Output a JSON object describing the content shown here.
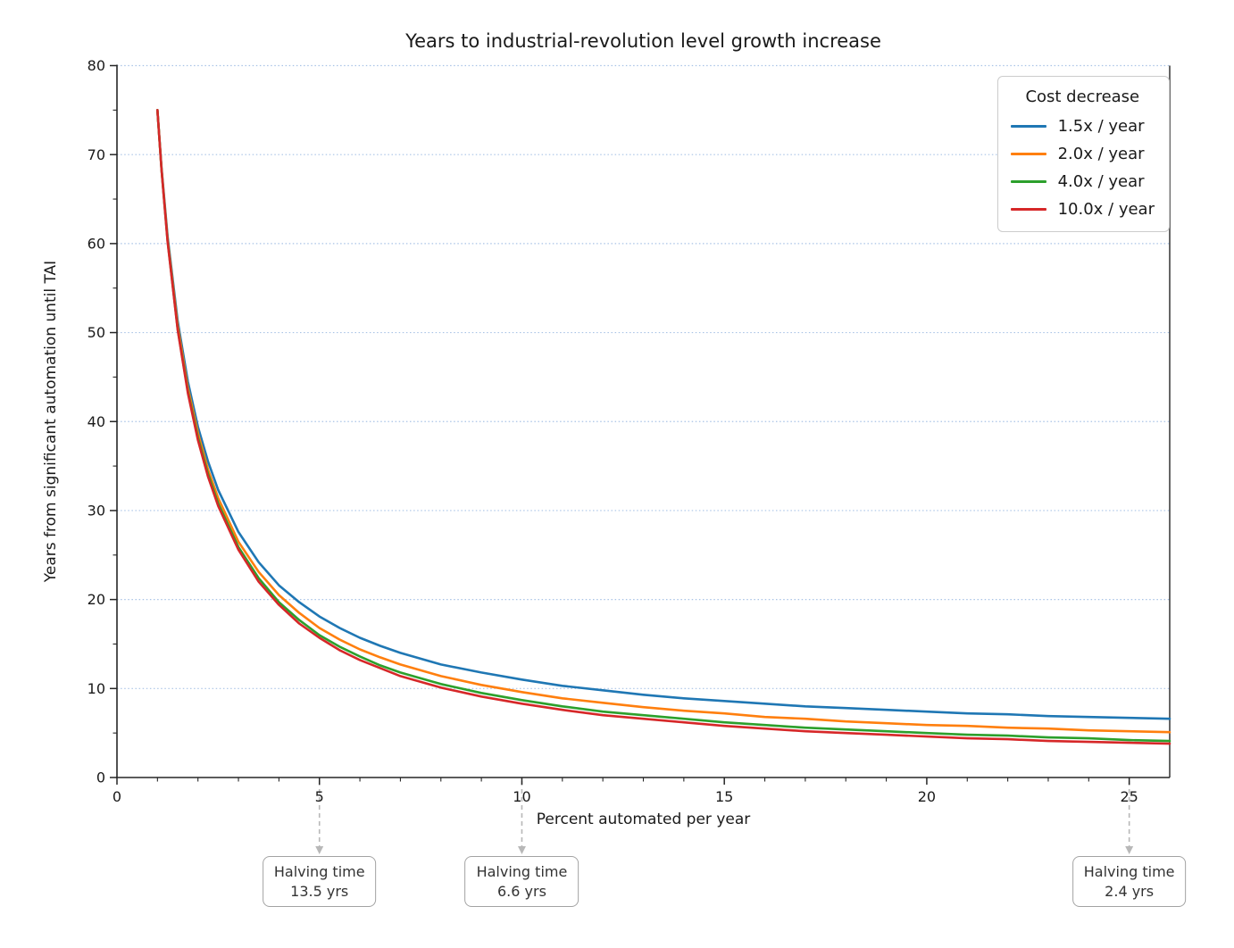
{
  "chart_data": {
    "type": "line",
    "title": "Years to industrial-revolution level growth increase",
    "xlabel": "Percent automated per year",
    "ylabel": "Years from significant automation until TAI",
    "xlim": [
      0,
      26
    ],
    "ylim": [
      0,
      80
    ],
    "xticks": [
      0,
      5,
      10,
      15,
      20,
      25
    ],
    "yticks": [
      0,
      10,
      20,
      30,
      40,
      50,
      60,
      70,
      80
    ],
    "x_minor_step": 1,
    "y_minor_step": 5,
    "grid": {
      "axis": "y",
      "style": "dotted",
      "on": true,
      "color": "#a9c3e6"
    },
    "legend": {
      "title": "Cost decrease",
      "position": "upper right"
    },
    "x": [
      1,
      1.1,
      1.25,
      1.5,
      1.75,
      2,
      2.25,
      2.5,
      3,
      3.5,
      4,
      4.5,
      5,
      5.5,
      6,
      6.5,
      7,
      8,
      9,
      10,
      11,
      12,
      13,
      14,
      15,
      16,
      17,
      18,
      19,
      20,
      21,
      22,
      23,
      24,
      25,
      26
    ],
    "series": [
      {
        "name": "1.5x / year",
        "color": "#1f77b4",
        "values": [
          75,
          68.5,
          60.8,
          51.3,
          44.5,
          39.4,
          35.5,
          32.3,
          27.6,
          24.2,
          21.6,
          19.7,
          18.1,
          16.8,
          15.7,
          14.8,
          14.0,
          12.7,
          11.8,
          11.0,
          10.3,
          9.8,
          9.3,
          8.9,
          8.6,
          8.3,
          8.0,
          7.8,
          7.6,
          7.4,
          7.2,
          7.1,
          6.9,
          6.8,
          6.7,
          6.6
        ]
      },
      {
        "name": "2.0x / year",
        "color": "#ff7f0e",
        "values": [
          75,
          68.4,
          60.5,
          50.8,
          43.8,
          38.7,
          34.6,
          31.4,
          26.5,
          23.1,
          20.5,
          18.5,
          16.8,
          15.5,
          14.4,
          13.5,
          12.7,
          11.4,
          10.4,
          9.6,
          8.9,
          8.4,
          7.9,
          7.5,
          7.2,
          6.8,
          6.6,
          6.3,
          6.1,
          5.9,
          5.8,
          5.6,
          5.5,
          5.3,
          5.2,
          5.1
        ]
      },
      {
        "name": "4.0x / year",
        "color": "#2ca02c",
        "values": [
          75,
          68.3,
          60.3,
          50.4,
          43.4,
          38.2,
          34.1,
          30.8,
          25.9,
          22.4,
          19.7,
          17.7,
          16.0,
          14.7,
          13.6,
          12.6,
          11.8,
          10.5,
          9.5,
          8.7,
          8.0,
          7.4,
          7.0,
          6.6,
          6.2,
          5.9,
          5.6,
          5.4,
          5.2,
          5.0,
          4.8,
          4.7,
          4.5,
          4.4,
          4.2,
          4.1
        ]
      },
      {
        "name": "10.0x / year",
        "color": "#d62728",
        "values": [
          75,
          68.3,
          60.2,
          50.3,
          43.2,
          37.9,
          33.8,
          30.5,
          25.6,
          22.0,
          19.4,
          17.3,
          15.7,
          14.3,
          13.2,
          12.3,
          11.4,
          10.1,
          9.1,
          8.3,
          7.6,
          7.0,
          6.6,
          6.2,
          5.8,
          5.5,
          5.2,
          5.0,
          4.8,
          4.6,
          4.4,
          4.3,
          4.1,
          4.0,
          3.9,
          3.8
        ]
      }
    ],
    "annotations": [
      {
        "x": 5,
        "line1": "Halving time",
        "line2": "13.5 yrs"
      },
      {
        "x": 10,
        "line1": "Halving time",
        "line2": "6.6 yrs"
      },
      {
        "x": 25,
        "line1": "Halving time",
        "line2": "2.4 yrs"
      }
    ],
    "colors": {
      "spine": "#262626",
      "tick": "#262626",
      "grid": "#a9c3e6",
      "arrow": "#b8b8b8",
      "text": "#1a1a1a"
    }
  }
}
